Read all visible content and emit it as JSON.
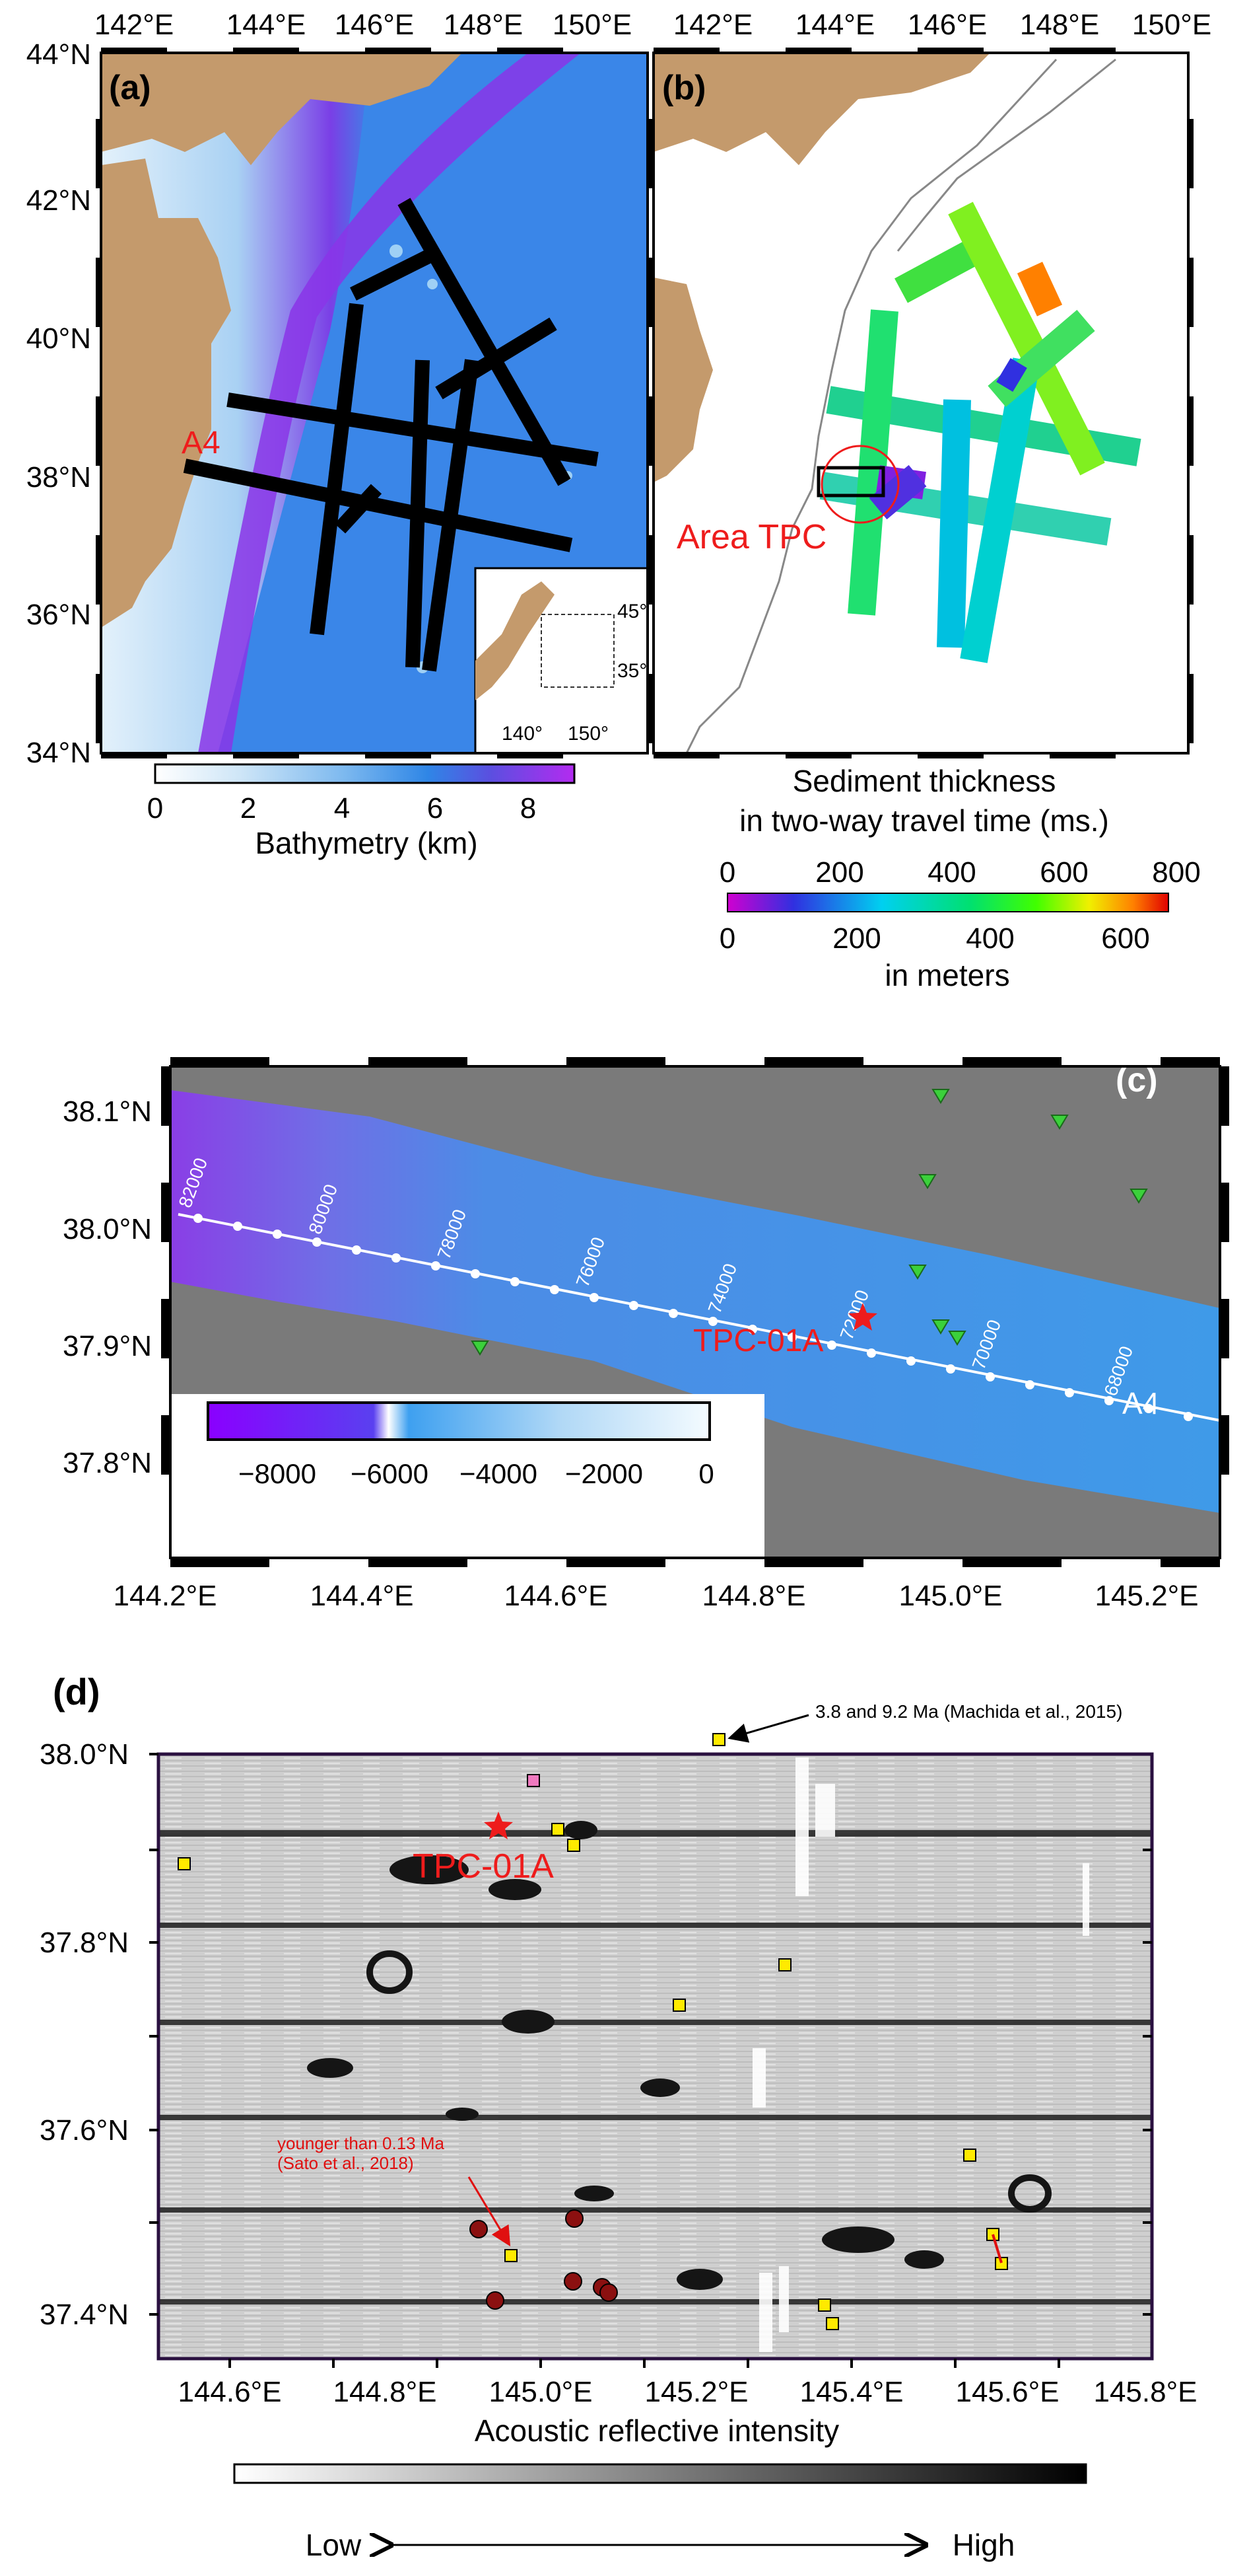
{
  "panel_a": {
    "label": "(a)",
    "lon_ticks": [
      "142°E",
      "144°E",
      "146°E",
      "148°E",
      "150°E"
    ],
    "lat_ticks": [
      "44°N",
      "42°N",
      "40°N",
      "38°N",
      "36°N",
      "34°N"
    ],
    "profile_label": "A4",
    "inset_lat_ticks": [
      "45°",
      "35°"
    ],
    "inset_lon_ticks": [
      "140°",
      "150°"
    ],
    "colorbar_ticks": [
      "0",
      "2",
      "4",
      "6",
      "8"
    ],
    "colorbar_title": "Bathymetry (km)",
    "colors": {
      "land": "#c49a6c",
      "trench": "#8a2be2",
      "deep": "#3a7fe0",
      "shelf": "#d8ecf8"
    }
  },
  "panel_b": {
    "label": "(b)",
    "lon_ticks": [
      "142°E",
      "144°E",
      "146°E",
      "148°E",
      "150°E"
    ],
    "area_label": "Area TPC",
    "legend_title_1": "Sediment thickness",
    "legend_title_2": "in two-way travel time (ms.)",
    "twt_ticks": [
      "0",
      "200",
      "400",
      "600",
      "800"
    ],
    "meter_ticks": [
      "0",
      "200",
      "400",
      "600"
    ],
    "meter_unit": "in meters"
  },
  "panel_c": {
    "label": "(c)",
    "lat_ticks": [
      "38.1°N",
      "38.0°N",
      "37.9°N",
      "37.8°N"
    ],
    "lon_ticks": [
      "144.2°E",
      "144.4°E",
      "144.6°E",
      "144.8°E",
      "145.0°E",
      "145.2°E"
    ],
    "shotpoints": [
      "82000",
      "80000",
      "78000",
      "76000",
      "74000",
      "72000",
      "70000",
      "68000"
    ],
    "site_label": "TPC-01A",
    "profile_label": "A4",
    "colorbar_ticks": [
      "−8000",
      "−6000",
      "−4000",
      "−2000",
      "0"
    ]
  },
  "panel_d": {
    "label": "(d)",
    "lat_ticks": [
      "38.0°N",
      "37.8°N",
      "37.6°N",
      "37.4°N"
    ],
    "lon_ticks": [
      "144.6°E",
      "144.8°E",
      "145.0°E",
      "145.2°E",
      "145.4°E",
      "145.6°E",
      "145.8°E"
    ],
    "site_label": "TPC-01A",
    "annotation_top": "3.8 and 9.2 Ma (Machida et al., 2015)",
    "annotation_red_1": "younger than 0.13 Ma",
    "annotation_red_2": "(Sato et al., 2018)",
    "colorbar_title": "Acoustic reflective intensity",
    "low_label": "Low",
    "high_label": "High"
  }
}
